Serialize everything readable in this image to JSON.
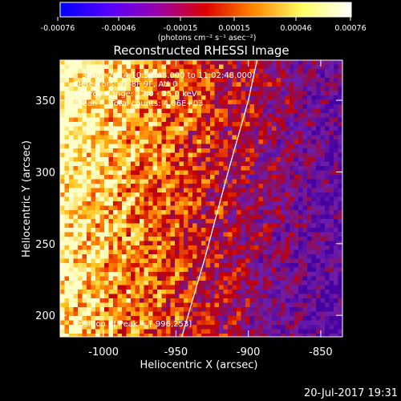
{
  "colorbar": {
    "tick_labels": [
      "-0.00076",
      "-0.00046",
      "-0.00015",
      "0.00015",
      "0.00046",
      "0.00076"
    ],
    "units": "(photons cm⁻² s⁻¹ asec⁻²)",
    "colors": [
      "#0000ff",
      "#5500ff",
      "#9900aa",
      "#dd0000",
      "#ff8800",
      "#ffff66",
      "#ffffff"
    ]
  },
  "chart_data": {
    "type": "heatmap",
    "title": "Reconstructed RHESSI Image",
    "xlabel": "Heliocentric X (arcsec)",
    "ylabel": "Heliocentric Y (arcsec)",
    "xlim": [
      -1030,
      -835
    ],
    "ylim": [
      185,
      378
    ],
    "xticks": [
      -1000,
      -950,
      -900,
      -850
    ],
    "xtick_labels": [
      "-1000",
      "-950",
      "-900",
      "-850"
    ],
    "yticks": [
      200,
      250,
      300,
      350
    ],
    "ytick_labels": [
      "200",
      "250",
      "300",
      "350"
    ],
    "zlim": [
      -0.00076,
      0.00076
    ],
    "peak": [
      -996,
      253
    ],
    "limb": [
      [
        -946,
        185
      ],
      [
        -930,
        240
      ],
      [
        -914,
        300
      ],
      [
        -900,
        350
      ],
      [
        -894,
        378
      ]
    ]
  },
  "annotations": {
    "line1": "3-Nov-2014 10:52:48.000 to 11:02:48.000",
    "line2": "Detectors: 3F 8F 9F, Att 0",
    "line3": "Energy Range: 12.0 - 25.0 keV",
    "line4": "Clean     Total counts: 4.06E+03",
    "peak_label": "Position of Peak = [-996,253]"
  },
  "timestamp": "20-Jul-2017 19:31"
}
